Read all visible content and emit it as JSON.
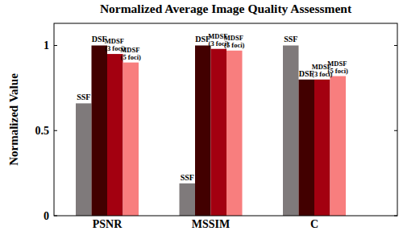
{
  "chart_data": {
    "type": "bar",
    "title": "Normalized Average Image Quality Assessment",
    "y_label": "Normalized Value",
    "categories": [
      "PSNR",
      "MSSIM",
      "C"
    ],
    "series": [
      {
        "name": "SSF",
        "color": "#7f7a7b",
        "values": [
          0.66,
          0.19,
          1.0
        ]
      },
      {
        "name": "DSF",
        "color": "#420000",
        "values": [
          1.0,
          1.0,
          0.8
        ]
      },
      {
        "name": "MDSF (3 foci)",
        "color": "#a30010",
        "values": [
          0.95,
          0.98,
          0.8
        ]
      },
      {
        "name": "MDSF (5 foci)",
        "color": "#f87e7e",
        "values": [
          0.9,
          0.97,
          0.82
        ]
      }
    ],
    "ylim": [
      0,
      1.13
    ],
    "yticks": [
      0,
      0.5,
      1
    ],
    "grid": false
  }
}
